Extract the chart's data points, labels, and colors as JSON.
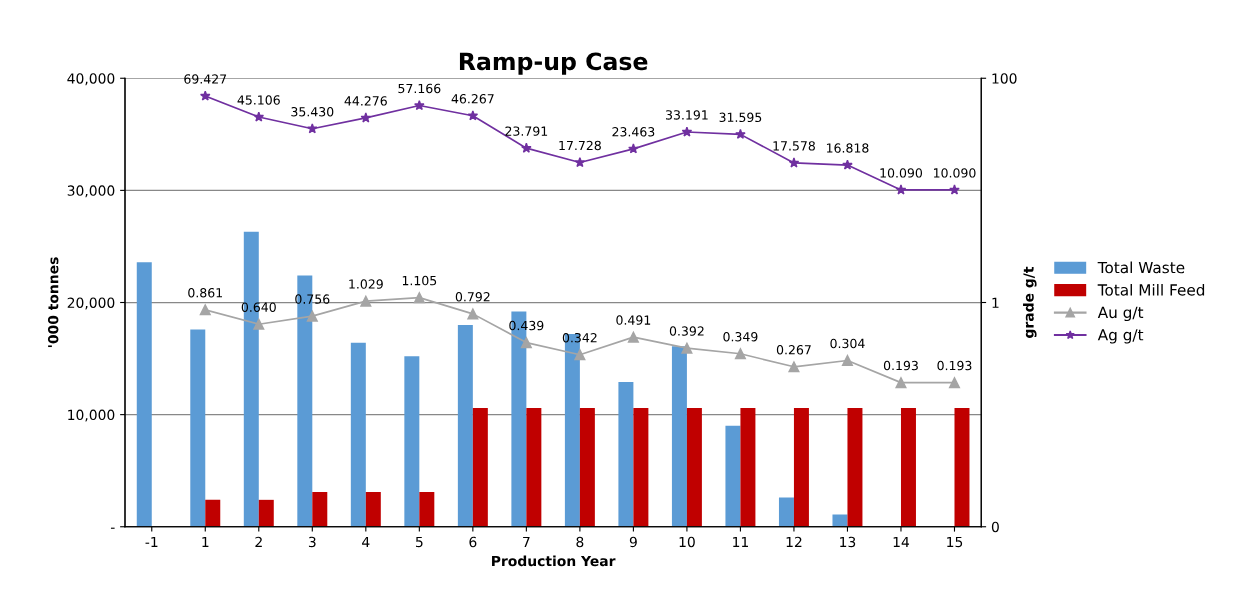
{
  "chart_data": {
    "type": "bar",
    "title": "Ramp-up Case",
    "xlabel": "Production Year",
    "ylabel": "'000 tonnes",
    "y2label": "grade g/t",
    "categories": [
      "-1",
      "1",
      "2",
      "3",
      "4",
      "5",
      "6",
      "7",
      "8",
      "9",
      "10",
      "11",
      "12",
      "13",
      "14",
      "15"
    ],
    "series": [
      {
        "name": "Total Waste",
        "color": "#5b9bd5",
        "values": [
          23600,
          17600,
          26300,
          22400,
          16400,
          15200,
          18000,
          19200,
          17200,
          12900,
          16100,
          9000,
          2600,
          1100,
          0,
          0
        ]
      },
      {
        "name": "Total Mill Feed",
        "color": "#c00000",
        "values": [
          0,
          2400,
          2400,
          3100,
          3100,
          3100,
          10600,
          10600,
          10600,
          10600,
          10600,
          10600,
          10600,
          10600,
          10600,
          10600
        ]
      },
      {
        "name": "Au g/t",
        "type": "line",
        "axis": "y2",
        "color": "#a5a5a5",
        "marker": "triangle",
        "data_labels": true,
        "values": [
          null,
          0.861,
          0.64,
          0.756,
          1.029,
          1.105,
          0.792,
          0.439,
          0.342,
          0.491,
          0.392,
          0.349,
          0.267,
          0.304,
          0.193,
          0.193
        ],
        "value_labels": [
          null,
          "0.861",
          "0.640",
          "0.756",
          "1.029",
          "1.105",
          "0.792",
          "0.439",
          "0.342",
          "0.491",
          "0.392",
          "0.349",
          "0.267",
          "0.304",
          "0.193",
          "0.193"
        ]
      },
      {
        "name": "Ag g/t",
        "type": "line",
        "axis": "y2",
        "color": "#7030a0",
        "marker": "star",
        "data_labels": true,
        "values": [
          null,
          69.427,
          45.106,
          35.43,
          44.276,
          57.166,
          46.267,
          23.791,
          17.728,
          23.463,
          33.191,
          31.595,
          17.578,
          16.818,
          10.09,
          10.09
        ],
        "value_labels": [
          null,
          "69.427",
          "45.106",
          "35.430",
          "44.276",
          "57.166",
          "46.267",
          "23.791",
          "17.728",
          "23.463",
          "33.191",
          "31.595",
          "17.578",
          "16.818",
          "10.090",
          "10.090"
        ]
      }
    ],
    "ylim": [
      0,
      40000
    ],
    "yticks": [
      {
        "value": 0,
        "label": "-"
      },
      {
        "value": 10000,
        "label": "10,000"
      },
      {
        "value": 20000,
        "label": "20,000"
      },
      {
        "value": 30000,
        "label": "30,000"
      },
      {
        "value": 40000,
        "label": "40,000"
      }
    ],
    "log": "y2",
    "y2lim": [
      0.01,
      100
    ],
    "y2ticks": [
      {
        "value": 0.01,
        "label": "0"
      },
      {
        "value": 1,
        "label": "1"
      },
      {
        "value": 100,
        "label": "100"
      }
    ],
    "grid": "y",
    "legend": "right"
  }
}
